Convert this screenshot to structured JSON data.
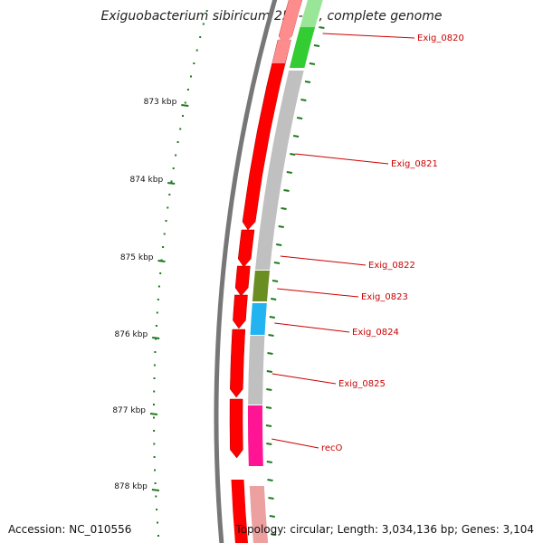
{
  "title": "Exiguobacterium sibiricum 255-15, complete genome",
  "footer": {
    "accession": "Accession: NC_010556",
    "topology": "Topology: circular; Length: 3,034,136 bp; Genes: 3,104"
  },
  "colors": {
    "gene_forward": "#ff0000",
    "gene_forward_faded": "#f59a9a",
    "cog_gray": "#c0c0c0",
    "cog_green": "#33cc33",
    "cog_olive": "#6b8e23",
    "cog_cyan": "#22b4f0",
    "cog_magenta": "#ff1493",
    "backbone": "#777777",
    "label": "#cc0000",
    "tick": "#1e7a1e"
  },
  "ruler": [
    {
      "label": "873 kbp"
    },
    {
      "label": "874 kbp"
    },
    {
      "label": "875 kbp"
    },
    {
      "label": "876 kbp"
    },
    {
      "label": "877 kbp"
    },
    {
      "label": "878 kbp"
    }
  ],
  "genes": [
    {
      "name": "Exig_0820",
      "cog": "green"
    },
    {
      "name": "Exig_0821",
      "cog": "gray"
    },
    {
      "name": "Exig_0822",
      "cog": "gray"
    },
    {
      "name": "Exig_0823",
      "cog": "olive"
    },
    {
      "name": "Exig_0824",
      "cog": "cyan"
    },
    {
      "name": "Exig_0825",
      "cog": "gray"
    },
    {
      "name": "recO",
      "cog": "magenta"
    }
  ]
}
